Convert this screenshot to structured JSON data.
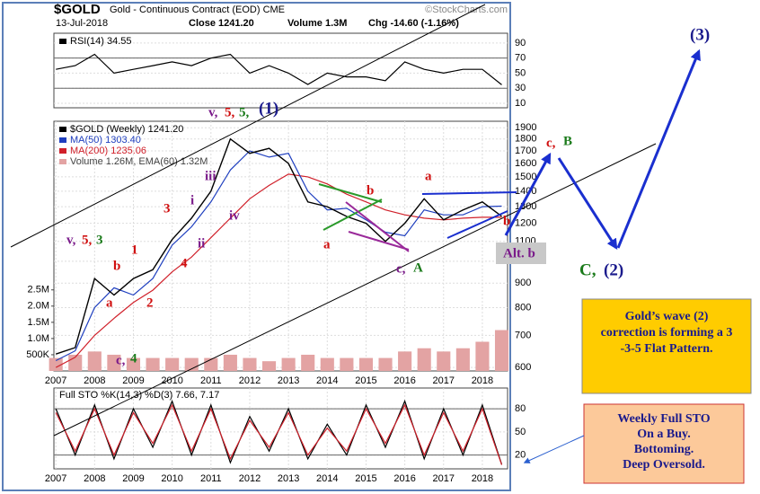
{
  "chart_data": [
    {
      "type": "line",
      "title": "$GOLD",
      "subtitle": "Gold - Continuous Contract (EOD) CME",
      "source": "©StockCharts.com",
      "date": "13-Jul-2018",
      "stats": [
        "Close 1241.20",
        "Volume 1.3M",
        "Chg -14.60 (-1.16%)"
      ],
      "log_scale": true,
      "grid": true,
      "x": [
        2007,
        2007.5,
        2008,
        2008.5,
        2009,
        2009.5,
        2010,
        2010.5,
        2011,
        2011.5,
        2012,
        2012.5,
        2013,
        2013.5,
        2014,
        2014.5,
        2015,
        2015.5,
        2016,
        2016.5,
        2017,
        2017.5,
        2018,
        2018.5
      ],
      "xlim": [
        2006.95,
        2018.65
      ],
      "xticks": [
        2007,
        2008,
        2009,
        2010,
        2011,
        2012,
        2013,
        2014,
        2015,
        2016,
        2017,
        2018
      ],
      "ylim": [
        590,
        1960
      ],
      "yticks": [
        600,
        700,
        800,
        900,
        1000,
        1100,
        1200,
        1300,
        1400,
        1500,
        1600,
        1700,
        1800,
        1900
      ],
      "y2lim": [
        0,
        7700000
      ],
      "y2ticks": [
        {
          "value": 500000,
          "label": "500K"
        },
        {
          "value": 1000000,
          "label": "1.0M"
        },
        {
          "value": 1500000,
          "label": "1.5M"
        },
        {
          "value": 2000000,
          "label": "2.0M"
        },
        {
          "value": 2500000,
          "label": "2.5M"
        }
      ],
      "series": [
        {
          "name": "Volume 1.26M, EMA(60) 1.32M",
          "color": "#e3a3a3",
          "kind": "bar",
          "axis": "y2",
          "values": [
            400000,
            500000,
            600000,
            500000,
            400000,
            400000,
            400000,
            400000,
            400000,
            500000,
            400000,
            300000,
            400000,
            500000,
            400000,
            400000,
            400000,
            400000,
            600000,
            700000,
            600000,
            700000,
            900000,
            1260000
          ]
        },
        {
          "name": "MA(200) 1235.06",
          "color": "#d0202a",
          "values": [
            600,
            630,
            700,
            760,
            820,
            870,
            950,
            1020,
            1120,
            1230,
            1350,
            1440,
            1520,
            1500,
            1450,
            1380,
            1330,
            1280,
            1250,
            1230,
            1220,
            1230,
            1235,
            1235.06
          ]
        },
        {
          "name": "MA(50) 1303.40",
          "color": "#1f3fbf",
          "values": [
            620,
            650,
            800,
            880,
            850,
            920,
            1080,
            1180,
            1330,
            1550,
            1700,
            1650,
            1680,
            1400,
            1280,
            1290,
            1220,
            1150,
            1130,
            1280,
            1250,
            1250,
            1300,
            1303.4
          ]
        },
        {
          "name": "$GOLD (Weekly) 1241.20",
          "color": "#000000",
          "values": [
            640,
            660,
            920,
            850,
            920,
            960,
            1110,
            1230,
            1400,
            1800,
            1680,
            1720,
            1600,
            1330,
            1300,
            1240,
            1200,
            1100,
            1200,
            1350,
            1220,
            1280,
            1330,
            1241.2
          ]
        }
      ]
    },
    {
      "type": "line",
      "grid": true,
      "x": [
        2007,
        2007.5,
        2008,
        2008.5,
        2009,
        2009.5,
        2010,
        2010.5,
        2011,
        2011.5,
        2012,
        2012.5,
        2013,
        2013.5,
        2014,
        2014.5,
        2015,
        2015.5,
        2016,
        2016.5,
        2017,
        2017.5,
        2018,
        2018.5
      ],
      "xlim": [
        2006.95,
        2018.65
      ],
      "ylim": [
        4,
        103
      ],
      "yticks": [
        10,
        30,
        50,
        70,
        90
      ],
      "levels": [
        30,
        70
      ],
      "series": [
        {
          "name": "RSI(14) 34.55",
          "color": "#000000",
          "values": [
            55,
            60,
            75,
            50,
            55,
            60,
            65,
            60,
            70,
            75,
            50,
            60,
            50,
            35,
            50,
            45,
            45,
            40,
            65,
            55,
            50,
            55,
            55,
            34.55
          ]
        }
      ]
    },
    {
      "type": "line",
      "title": "Full STO %K(14,3) %D(3) 7.66, 7.17",
      "grid": true,
      "x": [
        2007,
        2007.5,
        2008,
        2008.5,
        2009,
        2009.5,
        2010,
        2010.5,
        2011,
        2011.5,
        2012,
        2012.5,
        2013,
        2013.5,
        2014,
        2014.5,
        2015,
        2015.5,
        2016,
        2016.5,
        2017,
        2017.5,
        2018,
        2018.5
      ],
      "xlim": [
        2006.95,
        2018.65
      ],
      "xticks": [
        2007,
        2008,
        2009,
        2010,
        2011,
        2012,
        2013,
        2014,
        2015,
        2016,
        2017,
        2018
      ],
      "ylim": [
        2,
        107
      ],
      "yticks": [
        20,
        50,
        80
      ],
      "levels": [
        20,
        80
      ],
      "series": [
        {
          "color": "#000000",
          "values": [
            80,
            20,
            85,
            15,
            80,
            30,
            90,
            20,
            85,
            10,
            70,
            25,
            80,
            15,
            60,
            20,
            85,
            30,
            90,
            15,
            80,
            20,
            85,
            7.66
          ]
        },
        {
          "color": "#d0202a",
          "values": [
            75,
            25,
            80,
            20,
            75,
            35,
            85,
            25,
            80,
            15,
            65,
            30,
            75,
            20,
            55,
            25,
            80,
            35,
            85,
            20,
            75,
            25,
            80,
            7.17
          ]
        }
      ]
    }
  ],
  "annotations": [
    {
      "text": "v,"
    },
    {
      "text": "5,"
    },
    {
      "text": "5,"
    },
    {
      "text": "(1)"
    },
    {
      "text": "v,"
    },
    {
      "text": "5,"
    },
    {
      "text": "3"
    },
    {
      "text": "b"
    },
    {
      "text": "a"
    },
    {
      "text": "1"
    },
    {
      "text": "2"
    },
    {
      "text": "3"
    },
    {
      "text": "4"
    },
    {
      "text": "i"
    },
    {
      "text": "ii"
    },
    {
      "text": "iii"
    },
    {
      "text": "iv"
    },
    {
      "text": "c,"
    },
    {
      "text": "4"
    },
    {
      "text": "a"
    },
    {
      "text": "b"
    },
    {
      "text": "a"
    },
    {
      "text": "b"
    },
    {
      "text": "c,"
    },
    {
      "text": "A"
    },
    {
      "text": "Alt. b"
    },
    {
      "text": "c,"
    },
    {
      "text": "B"
    },
    {
      "text": "C,"
    },
    {
      "text": "(2)"
    },
    {
      "text": "(3)"
    }
  ],
  "boxes": [
    {
      "lines": [
        "Gold’s wave (2)",
        "correction is forming a 3",
        "-3-5 Flat Pattern."
      ]
    },
    {
      "lines": [
        "Weekly Full STO",
        "On a Buy.",
        "Bottoming.",
        "Deep Oversold."
      ]
    }
  ]
}
